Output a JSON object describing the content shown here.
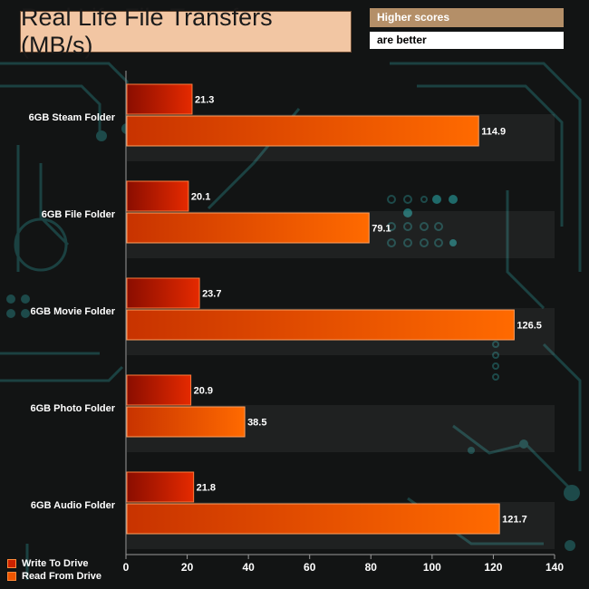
{
  "header": {
    "title": "Real Life File Transfers (MB/s)",
    "note_line1": "Higher scores",
    "note_line2": "are better"
  },
  "chart_data": {
    "type": "bar",
    "orientation": "horizontal",
    "title": "Real Life File Transfers (MB/s)",
    "categories": [
      "6GB Steam Folder",
      "6GB File Folder",
      "6GB Movie Folder",
      "6GB Photo Folder",
      "6GB Audio Folder"
    ],
    "series": [
      {
        "name": "Write To  Drive",
        "values": [
          21.3,
          20.1,
          23.7,
          20.9,
          21.8
        ],
        "color": "#c81e00"
      },
      {
        "name": "Read From  Drive",
        "values": [
          114.9,
          79.1,
          126.5,
          38.5,
          121.7
        ],
        "color": "#f05000"
      }
    ],
    "xlim": [
      0,
      140
    ],
    "xticks": [
      0,
      20,
      40,
      60,
      80,
      100,
      120,
      140
    ],
    "legend_position": "bottom-left"
  },
  "legend": {
    "items": [
      {
        "label": "Write To  Drive",
        "color": "#cc2200"
      },
      {
        "label": "Read From  Drive",
        "color": "#ee5500"
      }
    ]
  }
}
